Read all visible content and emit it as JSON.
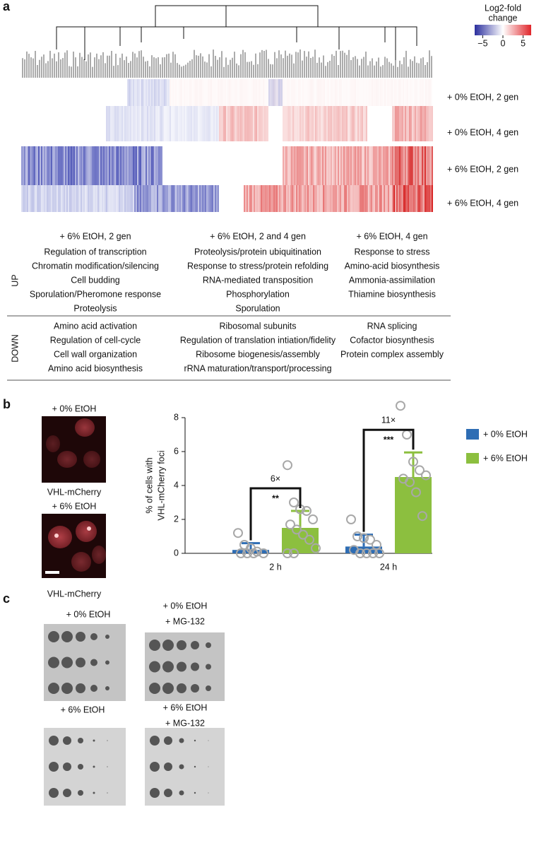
{
  "panel_a": {
    "label": "a",
    "colorbar": {
      "title": [
        "Log2-fold",
        "change"
      ],
      "lim": [
        -7,
        7
      ],
      "ticks": [
        {
          "value": -5,
          "label": "−5"
        },
        0,
        5
      ]
    },
    "rows": [
      {
        "label": "+ 0% EtOH, 2 gen",
        "color": "#2a78c2"
      },
      {
        "label": "+ 0% EtOH, 4 gen",
        "color": "#2a78c2"
      },
      {
        "label": "+ 6% EtOH, 2 gen",
        "color": "#7cba3b"
      },
      {
        "label": "+ 6% EtOH, 4 gen",
        "color": "#7cba3b"
      }
    ],
    "row_labels": [
      "UP",
      "DOWN"
    ],
    "columns": [
      {
        "header": "+ 6% EtOH, 2 gen",
        "color": "#7cba3b",
        "up": [
          "Regulation of transcription",
          "Chromatin modification/silencing",
          "Cell budding",
          "Sporulation/Pheromone response",
          "Proteolysis"
        ],
        "down": [
          "Amino acid activation",
          "Regulation of cell-cycle",
          "Cell wall organization",
          "Amino acid biosynthesis"
        ]
      },
      {
        "header": "+ 6% EtOH, 2 and 4 gen",
        "color": "#7cba3b",
        "up": [
          "Proteolysis/protein ubiquitination",
          "Response to stress/protein refolding",
          "RNA-mediated transposition",
          "Phosphorylation",
          "Sporulation"
        ],
        "down": [
          "Ribosomal subunits",
          "Regulation of translation intiation/fidelity",
          "Ribosome biogenesis/assembly",
          "rRNA maturation/transport/processing"
        ]
      },
      {
        "header": "+ 6% EtOH, 4 gen",
        "color": "#7cba3b",
        "up": [
          "Response to stress",
          "Amino-acid biosynthesis",
          "Ammonia-assimilation",
          "Thiamine biosynthesis"
        ],
        "down": [
          "RNA splicing",
          "Cofactor biosynthesis",
          "Protein complex assembly"
        ]
      }
    ]
  },
  "panel_b": {
    "label": "b",
    "images": [
      {
        "title": "+ 0% EtOH",
        "title_color": "#2a78c2",
        "caption": "VHL-mCherry"
      },
      {
        "title": "+ 6% EtOH",
        "title_color": "#7cba3b",
        "caption": "VHL-mCherry"
      }
    ],
    "caption_color": "#c0243a"
  },
  "chart_data": {
    "type": "bar",
    "ylabel": [
      "% of cells with",
      "VHL-mCherry foci"
    ],
    "categories": [
      "2 h",
      "24 h"
    ],
    "series": [
      {
        "name": "+ 0% EtOH",
        "color": "#2e6db4",
        "values": [
          0.2,
          0.4
        ],
        "errors": [
          0.4,
          0.7
        ],
        "points": [
          [
            1.2,
            0.5,
            0.3,
            0.1,
            0.0,
            0.0,
            0.0,
            0.0
          ],
          [
            2.0,
            1.0,
            0.9,
            0.8,
            0.5,
            0.2,
            0.0,
            0.0,
            0.0,
            0.0
          ]
        ]
      },
      {
        "name": "+ 6% EtOH",
        "color": "#8cbf3f",
        "values": [
          1.5,
          4.5
        ],
        "errors": [
          1.0,
          1.45
        ],
        "points": [
          [
            5.2,
            3.0,
            2.6,
            2.5,
            2.0,
            1.7,
            1.4,
            1.1,
            0.8,
            0.3,
            0.0,
            0.0
          ],
          [
            8.7,
            7.0,
            5.4,
            4.9,
            4.6,
            4.4,
            4.2,
            3.6,
            2.2
          ]
        ]
      }
    ],
    "ylim": [
      0,
      8
    ],
    "yticks": [
      0,
      2,
      4,
      6,
      8
    ],
    "annotations": [
      {
        "fold": "6×",
        "significance": "**"
      },
      {
        "fold": "11×",
        "significance": "***"
      }
    ]
  },
  "panel_c": {
    "label": "c",
    "plates": [
      {
        "lines": [
          "+ 0% EtOH"
        ],
        "color": "#2a78c2"
      },
      {
        "lines": [
          "+ 0% EtOH",
          "+ MG-132"
        ],
        "color": "#2a78c2"
      },
      {
        "lines": [
          "+ 6% EtOH"
        ],
        "color": "#7cba3b"
      },
      {
        "lines": [
          "+ 6% EtOH",
          "+ MG-132"
        ],
        "color": "#7cba3b"
      }
    ]
  }
}
